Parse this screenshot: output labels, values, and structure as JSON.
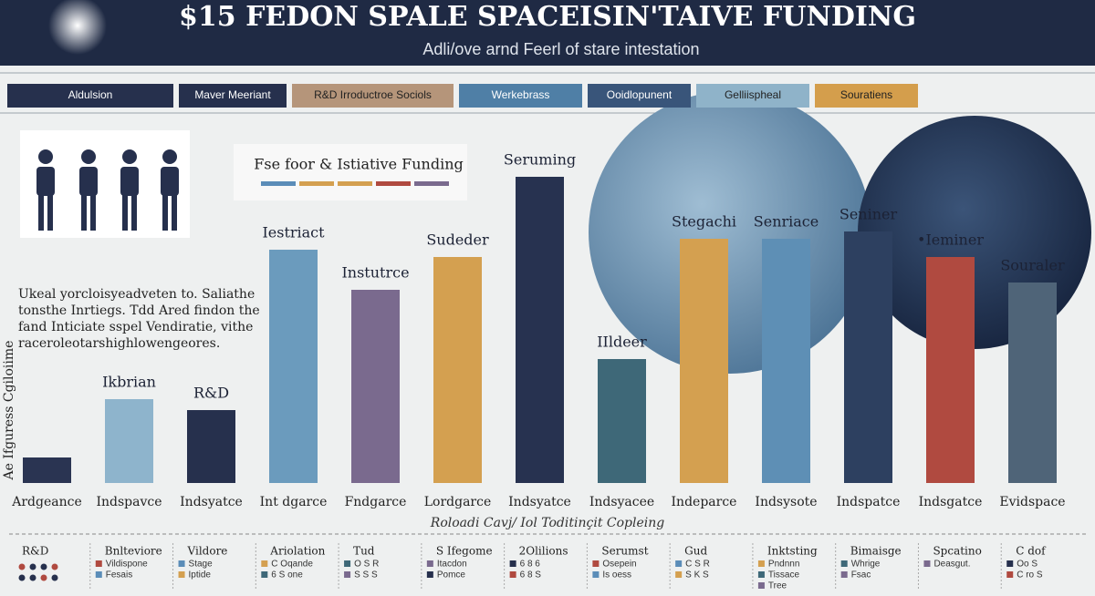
{
  "chart_data": {
    "type": "bar",
    "title": "$15 FEDON SPALE SPACEISIN'TAIVE FUNDING",
    "subtitle": "Adli/ove arnd Feerl of stare intestation",
    "y_label": "Ae Ifguress Cgiloiime",
    "x_label": "Roloadi Cavj/ Iol Toditinçit Copleing",
    "tabs": [
      {
        "label": "Aldulsion",
        "color": "#26304d"
      },
      {
        "label": "Maver Meeriant",
        "color": "#26304d"
      },
      {
        "label": "R&D Irroductroe Sociols",
        "color": "#b5957a"
      },
      {
        "label": "Werkebrass",
        "color": "#4f7fa6"
      },
      {
        "label": "Ooidlopunent",
        "color": "#39557a"
      },
      {
        "label": "Gelliispheal",
        "color": "#8fb3c9"
      },
      {
        "label": "Souratiens",
        "color": "#d49e4c"
      }
    ],
    "inset_title": "Fse foor & Istiative Funding",
    "inset_colors": [
      "#5b8db8",
      "#d4a050",
      "#d4a050",
      "#b04a40",
      "#7a6a8e"
    ],
    "note": [
      "Ukeal yorcloisyeadveten to. Saliathe",
      "tonsthe Inrtiegs. Tdd Ared findon the",
      "fand Inticiate sspel Vendiratie, vithe",
      "raceroleotarshighlowengeores."
    ],
    "categories": [
      "Ardgeance",
      "Indspavce",
      "Indsyatce",
      "Int dgarce",
      "Fndgarce",
      "Lordgarce",
      "Indsyatce",
      "Indsyacee",
      "Indeparce",
      "Indsysote",
      "Indspatce",
      "Indsgatce",
      "Evidspace"
    ],
    "values": [
      7,
      23,
      20,
      64,
      53,
      62,
      84,
      34,
      67,
      67,
      69,
      62,
      55
    ],
    "bar_labels": [
      null,
      "Ikbrian",
      "R&D",
      "Iestriact",
      "Instutrce",
      "Sudeder",
      "Seruming",
      "IIldeer",
      "Stegachi",
      "Senriace",
      "Seniner",
      "•Ieminer",
      "Souraler"
    ],
    "colors": [
      "#2a3452",
      "#8eb4cc",
      "#26304d",
      "#6b9bbd",
      "#7a6a8e",
      "#d4a050",
      "#273250",
      "#3e6878",
      "#d4a050",
      "#5e8fb5",
      "#2d4060",
      "#b04a40",
      "#4f6478"
    ],
    "ylim": [
      0,
      100
    ],
    "legend_groups": [
      {
        "title": "R&D",
        "items": []
      },
      {
        "title": "Bnlteviore",
        "items": [
          "Vildispone",
          "Fesais"
        ]
      },
      {
        "title": "Vildore",
        "items": [
          "Stage",
          "Iptide"
        ]
      },
      {
        "title": "Ariolation",
        "items": [
          "C Oqande",
          "6 S one"
        ]
      },
      {
        "title": "Tud",
        "items": [
          "O S R",
          "S S S"
        ]
      },
      {
        "title": "S Ifegome",
        "items": [
          "Itacdon",
          "Pomce"
        ]
      },
      {
        "title": "2Olilions",
        "items": [
          "6 8 6",
          "6 8 S"
        ]
      },
      {
        "title": "Serumst",
        "items": [
          "Osepein",
          "Is oess"
        ]
      },
      {
        "title": "Gud",
        "items": [
          "C S R",
          "S K S"
        ]
      },
      {
        "title": "Inktsting",
        "items": [
          "Pndnnn",
          "Tissace",
          "Tree"
        ]
      },
      {
        "title": "Bimaisge",
        "items": [
          "Whrige",
          "Fsac"
        ]
      },
      {
        "title": "Spcatino",
        "items": [
          "Deasgut."
        ]
      },
      {
        "title": "C dof",
        "items": [
          "Oo S",
          "C ro S"
        ]
      }
    ]
  }
}
